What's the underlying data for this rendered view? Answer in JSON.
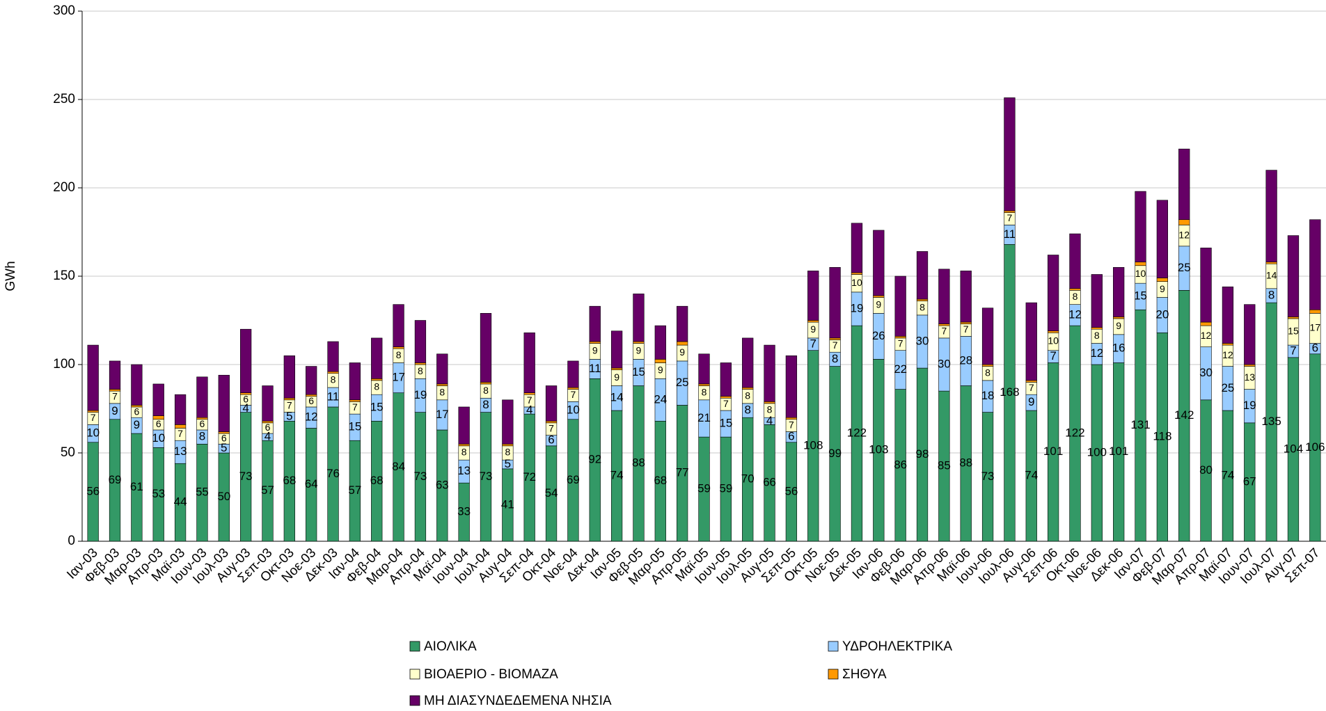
{
  "chart_data": {
    "type": "stacked_bar",
    "y_label": "GWh",
    "categories": [
      "Ιαν-03",
      "Φεβ-03",
      "Μαρ-03",
      "Απρ-03",
      "Μαϊ-03",
      "Ιουν-03",
      "Ιουλ-03",
      "Αυγ-03",
      "Σεπ-03",
      "Οκτ-03",
      "Νοε-03",
      "Δεκ-03",
      "Ιαν-04",
      "Φεβ-04",
      "Μαρ-04",
      "Απρ-04",
      "Μαϊ-04",
      "Ιουν-04",
      "Ιουλ-04",
      "Αυγ-04",
      "Σεπ-04",
      "Οκτ-04",
      "Νοε-04",
      "Δεκ-04",
      "Ιαν-05",
      "Φεβ-05",
      "Μαρ-05",
      "Απρ-05",
      "Μαϊ-05",
      "Ιουν-05",
      "Ιουλ-05",
      "Αυγ-05",
      "Σεπ-05",
      "Οκτ-05",
      "Νοε-05",
      "Δεκ-05",
      "Ιαν-06",
      "Φεβ-06",
      "Μαρ-06",
      "Απρ-06",
      "Μαϊ-06",
      "Ιουν-06",
      "Ιουλ-06",
      "Αυγ-06",
      "Σεπ-06",
      "Οκτ-06",
      "Νοε-06",
      "Δεκ-06",
      "Ιαν-07",
      "Φεβ-07",
      "Μαρ-07",
      "Απρ-07",
      "Μαϊ-07",
      "Ιουν-07",
      "Ιουλ-07",
      "Αυγ-07",
      "Σεπ-07"
    ],
    "series": [
      {
        "name": "ΑΙΟΛΙΚΑ",
        "color": "#339966",
        "values": [
          56,
          69,
          61,
          53,
          44,
          55,
          50,
          73,
          57,
          68,
          64,
          76,
          57,
          68,
          84,
          73,
          63,
          33,
          73,
          41,
          72,
          54,
          69,
          92,
          74,
          88,
          68,
          77,
          59,
          59,
          70,
          66,
          56,
          108,
          99,
          122,
          103,
          86,
          98,
          85,
          88,
          73,
          168,
          74,
          101,
          122,
          100,
          101,
          131,
          118,
          142,
          80,
          74,
          67,
          135,
          104,
          106
        ]
      },
      {
        "name": "ΥΔΡΟΗΛΕΚΤΡΙΚΑ",
        "color": "#99ccff",
        "values": [
          10,
          9,
          9,
          10,
          13,
          8,
          5,
          4,
          4,
          5,
          12,
          11,
          15,
          15,
          17,
          19,
          17,
          13,
          8,
          5,
          4,
          6,
          10,
          11,
          14,
          15,
          24,
          25,
          21,
          15,
          8,
          4,
          6,
          7,
          8,
          19,
          26,
          22,
          30,
          30,
          28,
          18,
          11,
          9,
          7,
          12,
          12,
          16,
          15,
          20,
          25,
          30,
          25,
          19,
          8,
          7,
          6
        ]
      },
      {
        "name": "ΒΙΟΑΕΡΙΟ - ΒΙΟΜΑΖΑ",
        "color": "#ffffcc",
        "values": [
          7,
          7,
          6,
          6,
          7,
          6,
          6,
          6,
          6,
          7,
          6,
          8,
          7,
          8,
          8,
          8,
          8,
          8,
          8,
          8,
          7,
          7,
          7,
          9,
          9,
          9,
          9,
          9,
          8,
          7,
          8,
          8,
          7,
          9,
          7,
          10,
          9,
          7,
          8,
          7,
          7,
          8,
          7,
          7,
          10,
          8,
          8,
          9,
          10,
          9,
          12,
          12,
          12,
          13,
          14,
          15,
          17
        ]
      },
      {
        "name": "ΣΗΘΥΑ",
        "color": "#ff9900",
        "values": [
          1,
          1,
          1,
          2,
          2,
          1,
          1,
          1,
          1,
          1,
          1,
          1,
          1,
          1,
          1,
          1,
          1,
          1,
          1,
          1,
          1,
          1,
          1,
          1,
          1,
          1,
          2,
          2,
          1,
          1,
          1,
          1,
          1,
          1,
          1,
          1,
          1,
          1,
          1,
          1,
          1,
          1,
          1,
          1,
          1,
          1,
          1,
          1,
          2,
          2,
          3,
          2,
          1,
          1,
          1,
          1,
          2
        ]
      },
      {
        "name": "ΜΗ ΔΙΑΣΥΝΔΕΔΕΜΕΝΑ ΝΗΣΙΑ",
        "color": "#660066",
        "values": [
          37,
          16,
          23,
          18,
          17,
          23,
          32,
          36,
          20,
          24,
          16,
          17,
          21,
          23,
          24,
          24,
          17,
          21,
          39,
          25,
          34,
          20,
          15,
          20,
          21,
          27,
          19,
          20,
          17,
          19,
          28,
          32,
          35,
          28,
          40,
          28,
          37,
          34,
          27,
          31,
          29,
          32,
          64,
          44,
          43,
          31,
          30,
          28,
          40,
          44,
          40,
          42,
          32,
          34,
          52,
          46,
          51
        ]
      }
    ],
    "labeled_series": [
      0,
      1,
      2
    ],
    "ylim": [
      0,
      300
    ],
    "yticks": [
      0,
      50,
      100,
      150,
      200,
      250,
      300
    ],
    "grid": true
  }
}
